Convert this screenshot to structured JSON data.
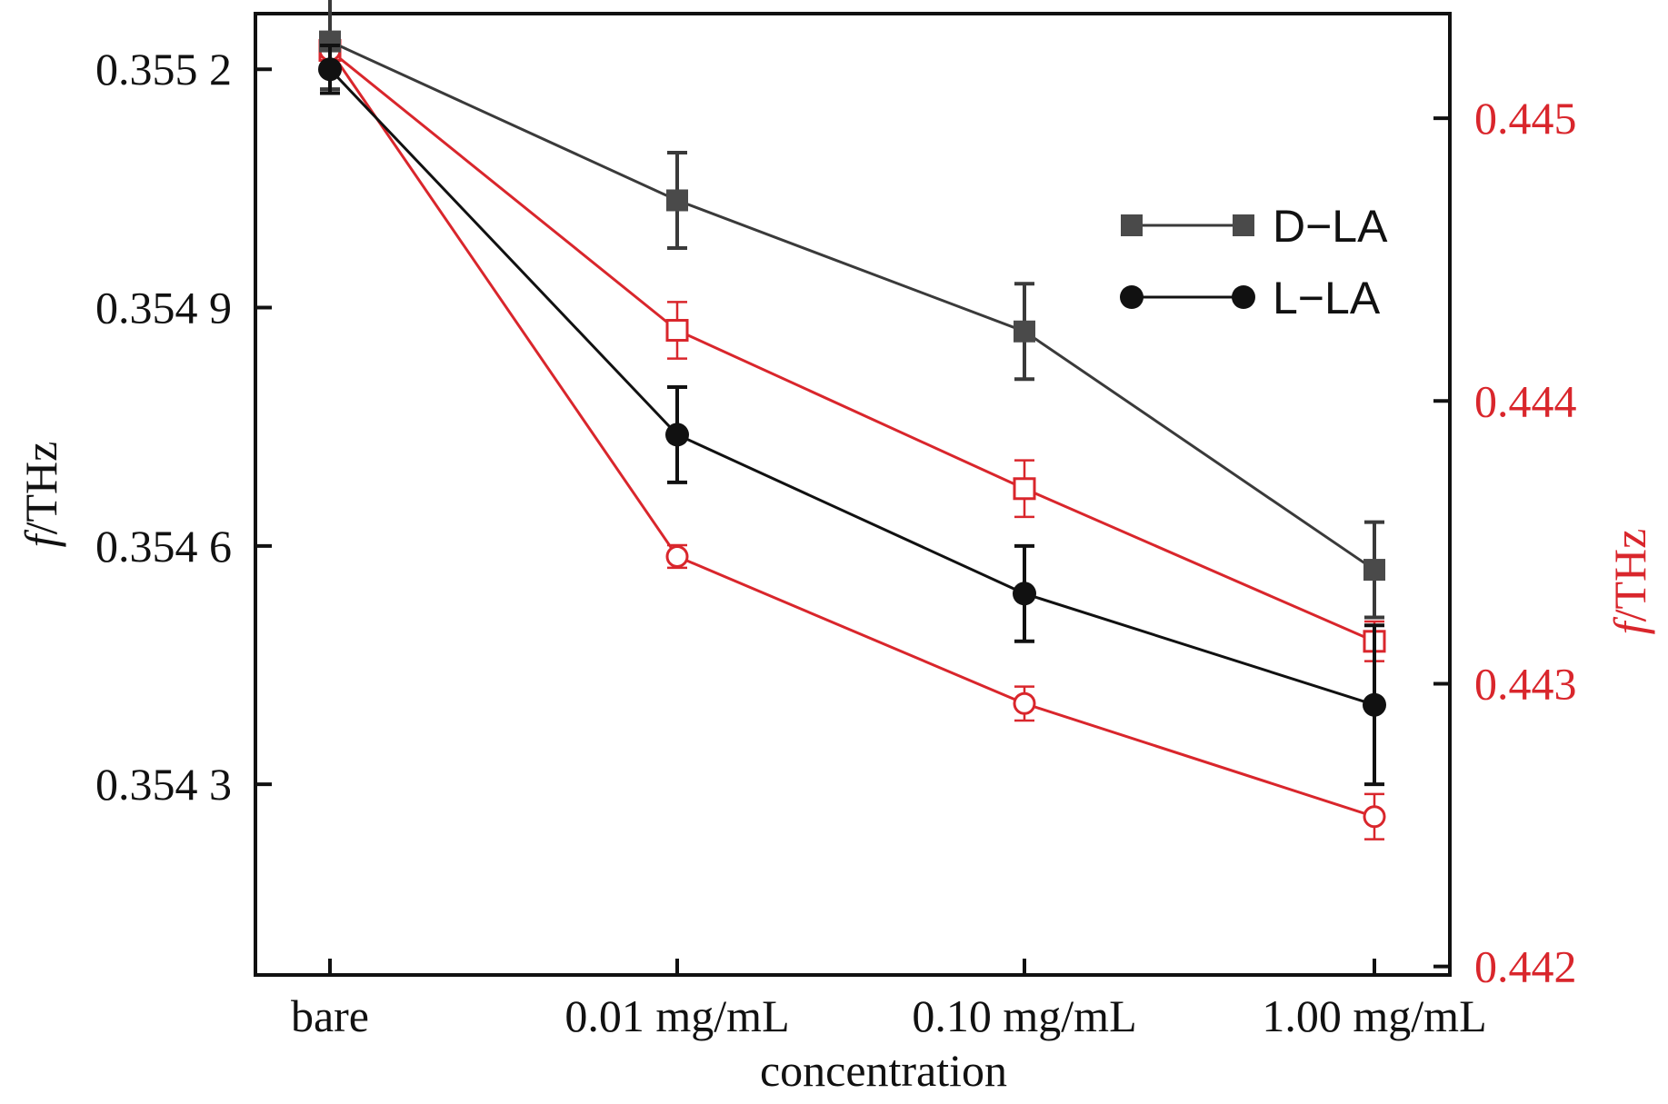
{
  "chart_data": {
    "type": "line",
    "categories": [
      "bare",
      "0.01 mg/mL",
      "0.10 mg/mL",
      "1.00 mg/mL"
    ],
    "xlabel": "concentration",
    "y_left": {
      "label_italic": "f",
      "label_rest": "/THz",
      "ylim": [
        0.35406,
        0.35527
      ],
      "ticks": [
        0.3552,
        0.3549,
        0.3546,
        0.3543
      ],
      "tick_labels": [
        "0.355 2",
        "0.354 9",
        "0.354 6",
        "0.354 3"
      ],
      "color": "#111111"
    },
    "y_right": {
      "label_italic": "f",
      "label_rest": "/THz",
      "ylim": [
        0.44197,
        0.44537
      ],
      "ticks": [
        0.445,
        0.444,
        0.443,
        0.442
      ],
      "tick_labels": [
        "0.445",
        "0.444",
        "0.443",
        "0.442"
      ],
      "color": "#d9262c"
    },
    "series": [
      {
        "name": "D−LA",
        "axis": "left",
        "marker": "square-filled",
        "color": "#3a3a3a",
        "values": [
          0.355235,
          0.355035,
          0.35487,
          0.35457
        ],
        "errors": [
          6e-05,
          6e-05,
          6e-05,
          6e-05
        ]
      },
      {
        "name": "L−LA",
        "axis": "left",
        "marker": "circle-filled",
        "color": "#111111",
        "values": [
          0.3552,
          0.35474,
          0.35454,
          0.3544
        ],
        "errors": [
          3e-05,
          6e-05,
          6e-05,
          0.0001
        ]
      },
      {
        "name": "",
        "axis": "right",
        "marker": "square-open",
        "color": "#d9262c",
        "values": [
          0.44524,
          0.44425,
          0.44369,
          0.44315
        ],
        "errors": [
          3e-05,
          0.0001,
          0.0001,
          7e-05
        ]
      },
      {
        "name": "",
        "axis": "right",
        "marker": "circle-open",
        "color": "#d9262c",
        "values": [
          0.44524,
          0.44345,
          0.44293,
          0.44253
        ],
        "errors": [
          2e-05,
          4e-05,
          6e-05,
          8e-05
        ]
      }
    ],
    "legend": {
      "placement": "top-right",
      "entries": [
        "D−LA",
        "L−LA"
      ]
    }
  }
}
